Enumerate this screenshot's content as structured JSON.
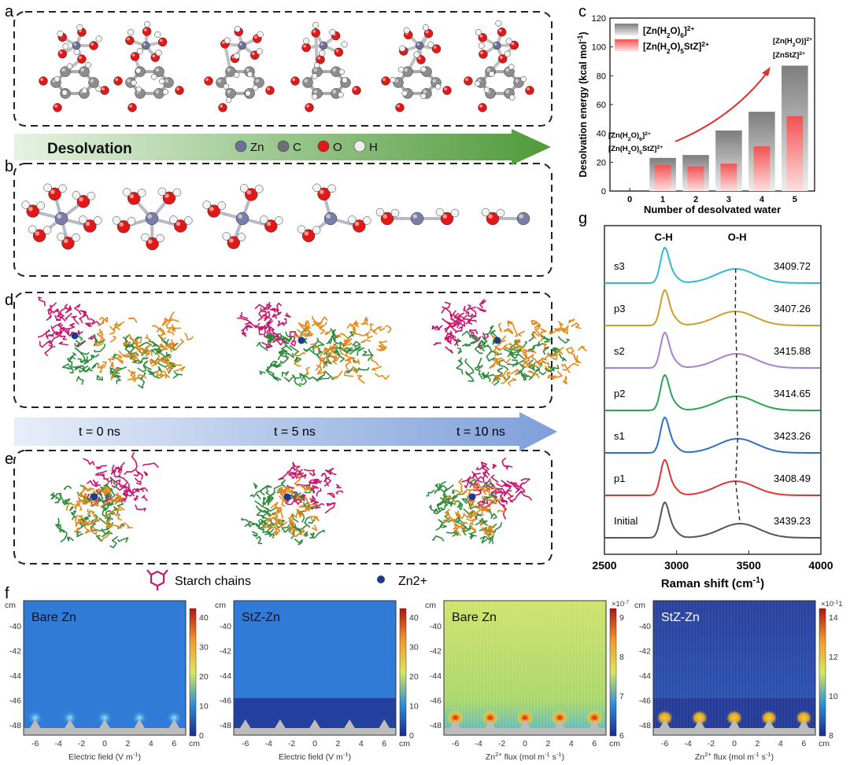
{
  "panel_labels": {
    "a": "a",
    "b": "b",
    "c": "c",
    "d": "d",
    "e": "e",
    "f": "f",
    "g": "g"
  },
  "desolvation_arrow": {
    "label": "Desolvation"
  },
  "atom_legend": [
    {
      "symbol": "Zn",
      "color": "#6b6f9a"
    },
    {
      "symbol": "C",
      "color": "#707070"
    },
    {
      "symbol": "O",
      "color": "#e01818"
    },
    {
      "symbol": "H",
      "color": "#eeeeee"
    }
  ],
  "time_arrow": {
    "labels": [
      "t = 0 ns",
      "t = 5 ns",
      "t = 10 ns"
    ]
  },
  "legend_bottom": {
    "starch": "Starch chains",
    "zn": "Zn2+"
  },
  "colors": {
    "pink": "#c8186e",
    "orange": "#e48a1c",
    "green": "#2e8b3e",
    "zn": "#1f3a8a",
    "bar_gray": "#9a9a9a",
    "bar_red": "#f06060"
  },
  "chart_data": [
    {
      "id": "c",
      "type": "bar",
      "title": "",
      "xlabel": "Number of desolvated water",
      "ylabel": "Desolvation energy (kcal mol-1)",
      "categories": [
        "0",
        "1",
        "2",
        "3",
        "4",
        "5"
      ],
      "ylim": [
        0,
        120
      ],
      "yticks": [
        0,
        20,
        40,
        60,
        80,
        100,
        120
      ],
      "series": [
        {
          "name": "[Zn(H2O)6]2+",
          "values": [
            0,
            23,
            25,
            42,
            55,
            87
          ]
        },
        {
          "name": "[Zn(H2O)5StZ]2+",
          "values": [
            0,
            18,
            17,
            19,
            31,
            52
          ]
        }
      ],
      "annotations": {
        "left1": "[Zn(H2O)6]2+",
        "left2": "[Zn(H2O)5StZ]2+",
        "right1": "[Zn(H2O)]2+",
        "right2": "[ZnStZ]2+"
      }
    },
    {
      "id": "g",
      "type": "line",
      "xlabel": "Raman shift (cm-1)",
      "xlim": [
        2500,
        4000
      ],
      "xticks": [
        2500,
        3000,
        3500,
        4000
      ],
      "peak_labels": [
        "C-H",
        "O-H"
      ],
      "series": [
        {
          "name": "s3",
          "color": "#2fbcd0",
          "oh_peak": 3409.72,
          "label": "3409.72"
        },
        {
          "name": "p3",
          "color": "#c9a028",
          "oh_peak": 3407.26,
          "label": "3407.26"
        },
        {
          "name": "s2",
          "color": "#a97fcf",
          "oh_peak": 3415.88,
          "label": "3415.88"
        },
        {
          "name": "p2",
          "color": "#2aa552",
          "oh_peak": 3414.65,
          "label": "3414.65"
        },
        {
          "name": "s1",
          "color": "#2e6fbf",
          "oh_peak": 3423.26,
          "label": "3423.26"
        },
        {
          "name": "p1",
          "color": "#e03434",
          "oh_peak": 3408.49,
          "label": "3408.49"
        },
        {
          "name": "Initial",
          "color": "#555555",
          "oh_peak": 3439.23,
          "label": "3439.23"
        }
      ]
    },
    {
      "id": "f1",
      "type": "heatmap",
      "title": "Bare Zn",
      "xlabel": "Electric field (V m-1)",
      "xticks": [
        "-6",
        "-4",
        "-2",
        "0",
        "2",
        "4",
        "6"
      ],
      "yticks": [
        "-40",
        "-42",
        "-44",
        "-46",
        "-48"
      ],
      "unit": "cm",
      "cbar_ticks": [
        "0",
        "10",
        "20",
        "30",
        "40"
      ],
      "cbar_exp": ""
    },
    {
      "id": "f2",
      "type": "heatmap",
      "title": "StZ-Zn",
      "xlabel": "Electric field (V m-1)",
      "xticks": [
        "-6",
        "-4",
        "-2",
        "0",
        "2",
        "4",
        "6"
      ],
      "yticks": [
        "-40",
        "-42",
        "-44",
        "-46",
        "-48"
      ],
      "unit": "cm",
      "cbar_ticks": [
        "0",
        "10",
        "20",
        "30",
        "40"
      ],
      "cbar_exp": ""
    },
    {
      "id": "f3",
      "type": "heatmap",
      "title": "Bare Zn",
      "xlabel": "Zn2+ flux (mol m-1 s-1)",
      "xticks": [
        "-6",
        "-4",
        "-2",
        "0",
        "2",
        "4",
        "6"
      ],
      "yticks": [
        "-40",
        "-42",
        "-44",
        "-46",
        "-48"
      ],
      "unit": "cm",
      "cbar_ticks": [
        "6",
        "7",
        "8",
        "9"
      ],
      "cbar_exp": "×10-7"
    },
    {
      "id": "f4",
      "type": "heatmap",
      "title": "StZ-Zn",
      "xlabel": "Zn2+ flux (mol m-1 s-1)",
      "xticks": [
        "-6",
        "-4",
        "-2",
        "0",
        "2",
        "4",
        "6"
      ],
      "yticks": [
        "-40",
        "-42",
        "-44",
        "-46",
        "-48"
      ],
      "unit": "cm",
      "cbar_ticks": [
        "8",
        "10",
        "12",
        "14"
      ],
      "cbar_exp": "×10-11"
    }
  ]
}
